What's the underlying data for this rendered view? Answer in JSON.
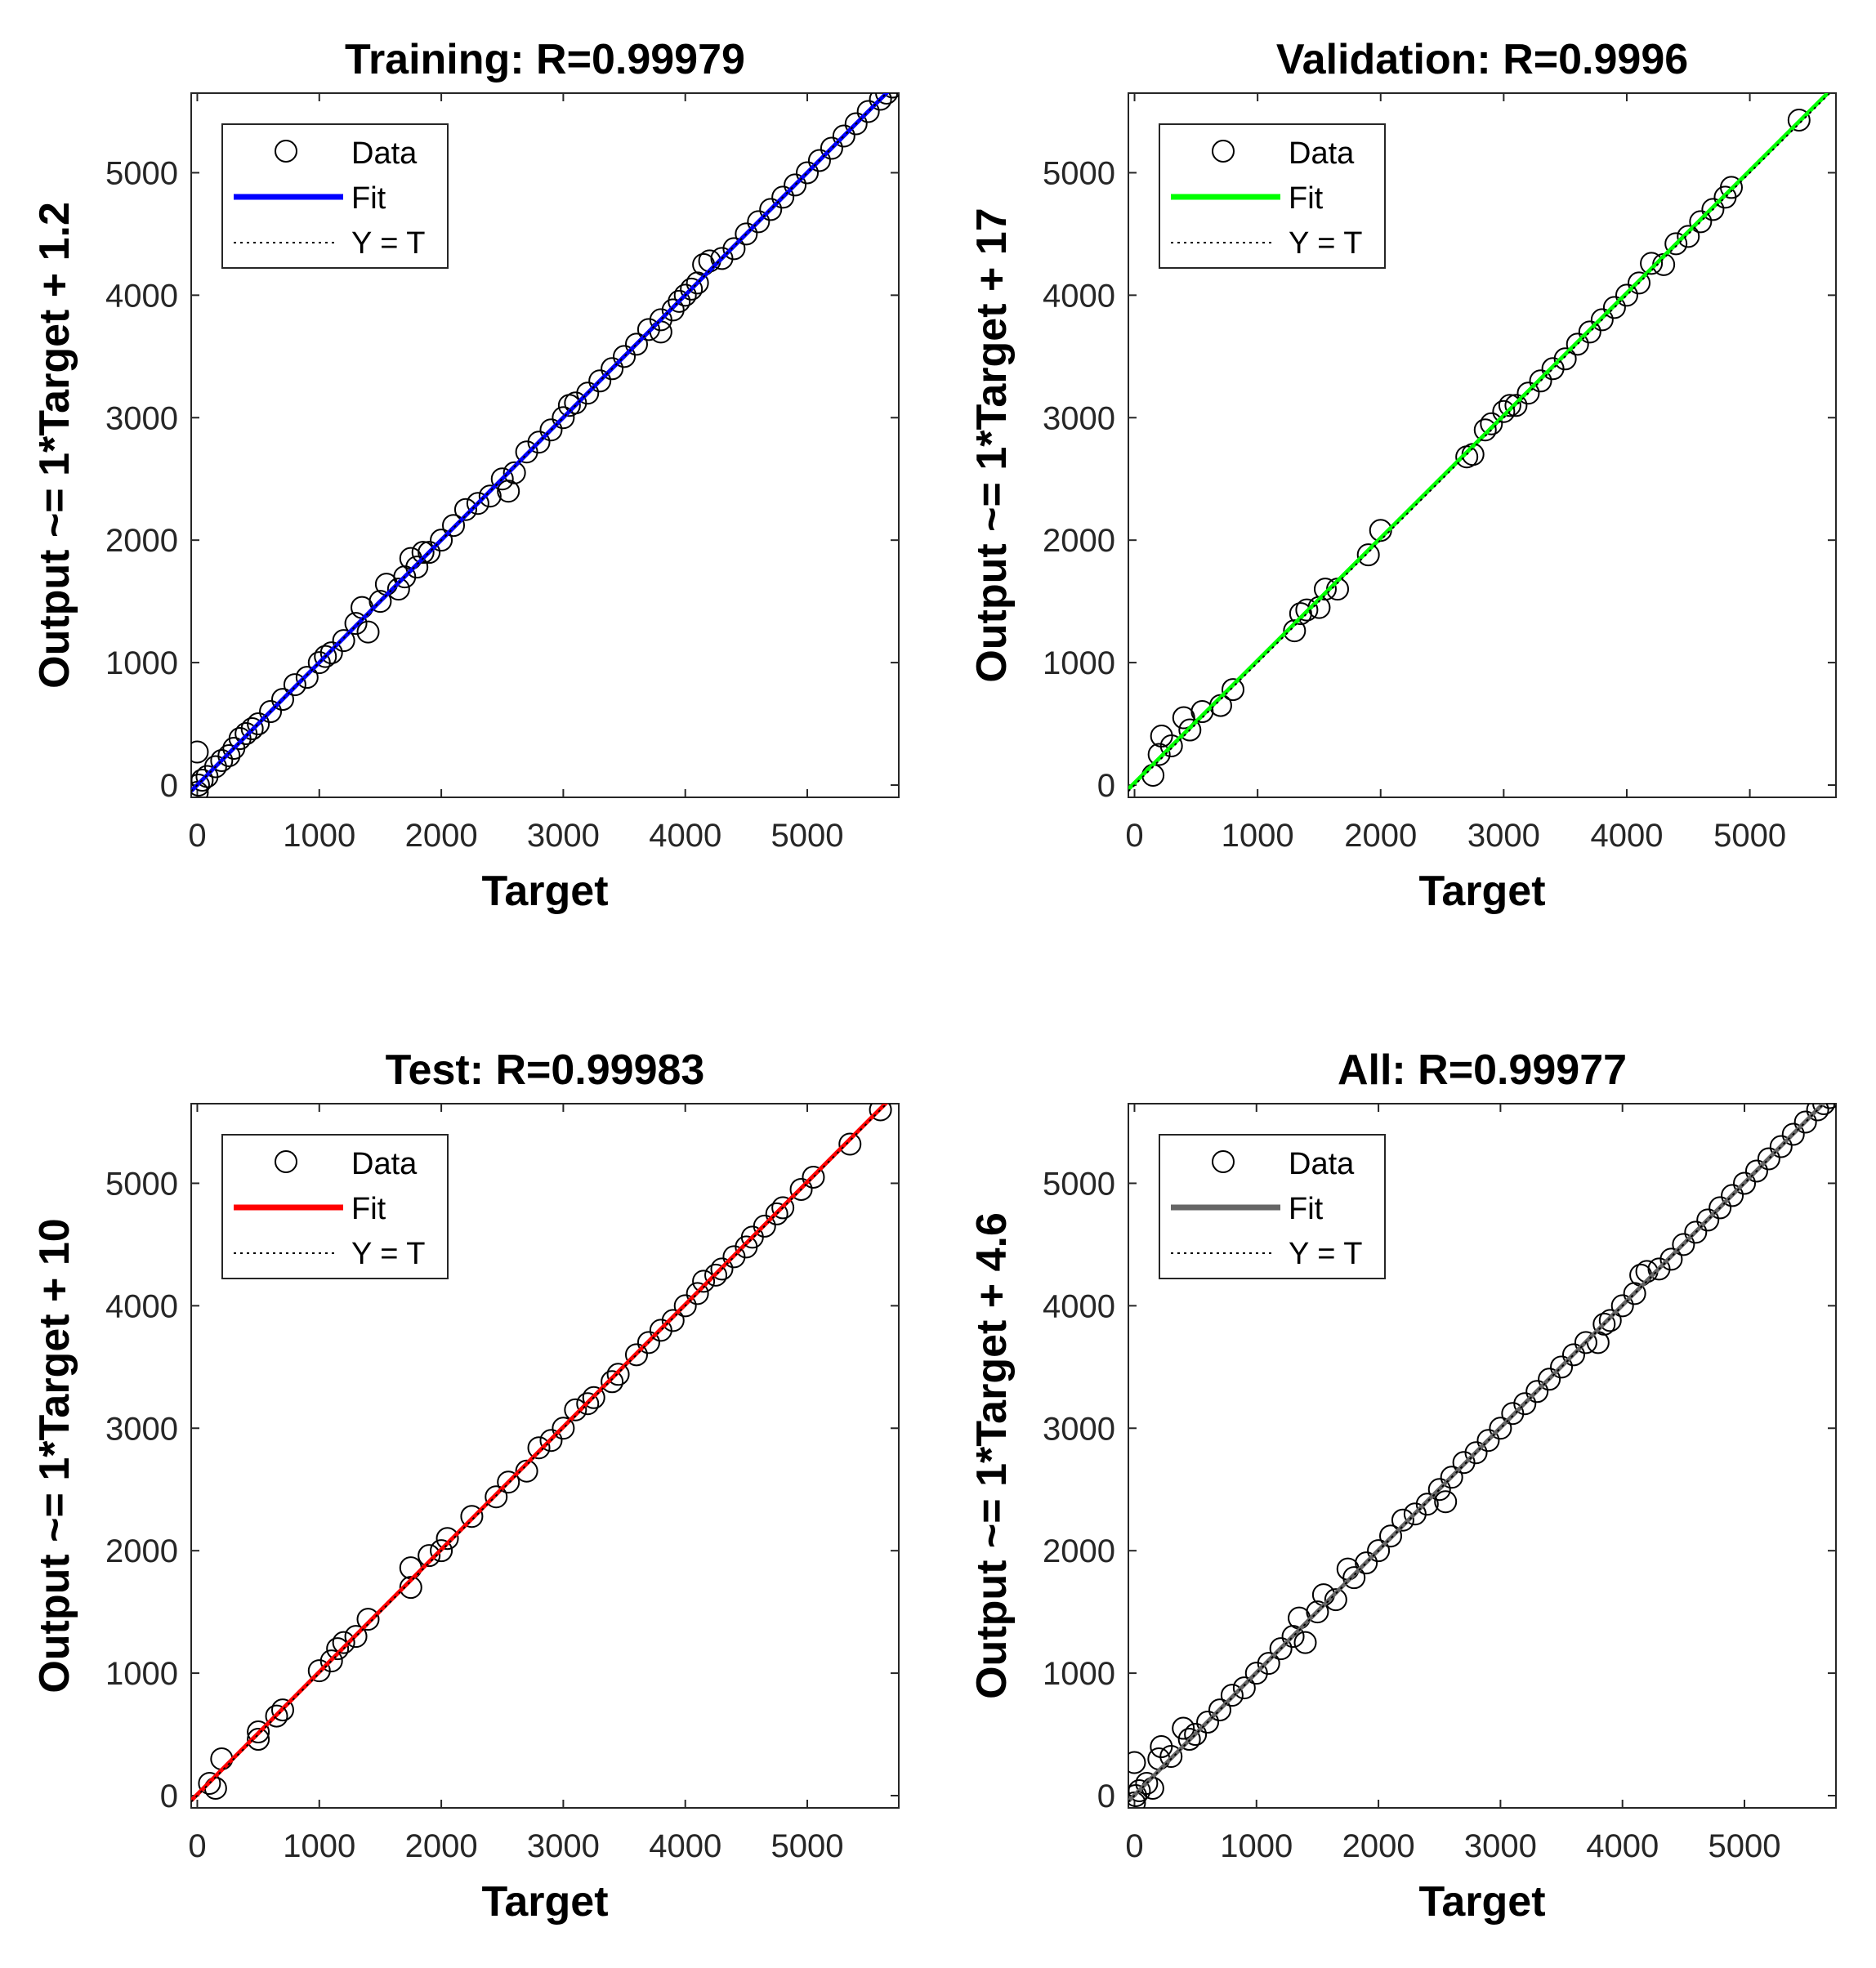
{
  "chart_data": [
    {
      "type": "scatter",
      "title": "Training: R=0.99979",
      "xlabel": "Target",
      "ylabel": "Output ~= 1*Target + 1.2",
      "xlim": [
        -50,
        5750
      ],
      "ylim": [
        -100,
        5650
      ],
      "xticks": [
        "0",
        "1000",
        "2000",
        "3000",
        "4000",
        "5000"
      ],
      "yticks": [
        "0",
        "1000",
        "2000",
        "3000",
        "4000",
        "5000"
      ],
      "legend": {
        "position": "top-left",
        "entries": [
          "Data",
          "Fit",
          "Y = T"
        ]
      },
      "fit": {
        "slope": 1,
        "intercept": 1.2,
        "color": "#0000ff"
      },
      "points": [
        [
          0,
          270
        ],
        [
          0,
          -60
        ],
        [
          10,
          0
        ],
        [
          40,
          40
        ],
        [
          80,
          70
        ],
        [
          150,
          150
        ],
        [
          200,
          200
        ],
        [
          260,
          240
        ],
        [
          300,
          300
        ],
        [
          350,
          380
        ],
        [
          400,
          420
        ],
        [
          450,
          460
        ],
        [
          500,
          500
        ],
        [
          600,
          600
        ],
        [
          700,
          700
        ],
        [
          800,
          820
        ],
        [
          900,
          880
        ],
        [
          1000,
          1000
        ],
        [
          1050,
          1050
        ],
        [
          1100,
          1080
        ],
        [
          1200,
          1180
        ],
        [
          1300,
          1320
        ],
        [
          1350,
          1450
        ],
        [
          1400,
          1250
        ],
        [
          1500,
          1500
        ],
        [
          1550,
          1640
        ],
        [
          1650,
          1600
        ],
        [
          1700,
          1700
        ],
        [
          1750,
          1850
        ],
        [
          1800,
          1780
        ],
        [
          1850,
          1900
        ],
        [
          1900,
          1900
        ],
        [
          2000,
          2000
        ],
        [
          2100,
          2120
        ],
        [
          2200,
          2250
        ],
        [
          2300,
          2300
        ],
        [
          2400,
          2360
        ],
        [
          2500,
          2500
        ],
        [
          2550,
          2400
        ],
        [
          2600,
          2550
        ],
        [
          2700,
          2720
        ],
        [
          2800,
          2800
        ],
        [
          2900,
          2900
        ],
        [
          3000,
          3000
        ],
        [
          3050,
          3100
        ],
        [
          3100,
          3120
        ],
        [
          3200,
          3200
        ],
        [
          3300,
          3300
        ],
        [
          3400,
          3400
        ],
        [
          3500,
          3500
        ],
        [
          3600,
          3600
        ],
        [
          3700,
          3720
        ],
        [
          3800,
          3700
        ],
        [
          3800,
          3800
        ],
        [
          3900,
          3880
        ],
        [
          3950,
          3950
        ],
        [
          4000,
          4000
        ],
        [
          4050,
          4050
        ],
        [
          4100,
          4100
        ],
        [
          4150,
          4250
        ],
        [
          4200,
          4280
        ],
        [
          4300,
          4300
        ],
        [
          4400,
          4380
        ],
        [
          4500,
          4500
        ],
        [
          4600,
          4600
        ],
        [
          4700,
          4700
        ],
        [
          4800,
          4800
        ],
        [
          4900,
          4900
        ],
        [
          5000,
          5000
        ],
        [
          5100,
          5100
        ],
        [
          5200,
          5200
        ],
        [
          5300,
          5300
        ],
        [
          5400,
          5400
        ],
        [
          5500,
          5500
        ],
        [
          5600,
          5600
        ],
        [
          5650,
          5650
        ],
        [
          5700,
          5700
        ]
      ]
    },
    {
      "type": "scatter",
      "title": "Validation: R=0.9996",
      "xlabel": "Target",
      "ylabel": "Output ~= 1*Target + 17",
      "xlim": [
        -50,
        5700
      ],
      "ylim": [
        -100,
        5650
      ],
      "xticks": [
        "0",
        "1000",
        "2000",
        "3000",
        "4000",
        "5000"
      ],
      "yticks": [
        "0",
        "1000",
        "2000",
        "3000",
        "4000",
        "5000"
      ],
      "legend": {
        "position": "top-left",
        "entries": [
          "Data",
          "Fit",
          "Y = T"
        ]
      },
      "fit": {
        "slope": 1,
        "intercept": 17,
        "color": "#00ff00"
      },
      "points": [
        [
          150,
          80
        ],
        [
          200,
          250
        ],
        [
          220,
          400
        ],
        [
          300,
          320
        ],
        [
          400,
          550
        ],
        [
          450,
          450
        ],
        [
          550,
          600
        ],
        [
          700,
          650
        ],
        [
          800,
          780
        ],
        [
          1300,
          1260
        ],
        [
          1350,
          1400
        ],
        [
          1400,
          1430
        ],
        [
          1500,
          1450
        ],
        [
          1550,
          1600
        ],
        [
          1650,
          1600
        ],
        [
          1900,
          1880
        ],
        [
          2000,
          2080
        ],
        [
          2700,
          2680
        ],
        [
          2750,
          2700
        ],
        [
          2850,
          2900
        ],
        [
          2900,
          2950
        ],
        [
          3000,
          3050
        ],
        [
          3050,
          3100
        ],
        [
          3100,
          3100
        ],
        [
          3200,
          3200
        ],
        [
          3300,
          3300
        ],
        [
          3400,
          3400
        ],
        [
          3500,
          3480
        ],
        [
          3600,
          3600
        ],
        [
          3700,
          3700
        ],
        [
          3800,
          3800
        ],
        [
          3900,
          3900
        ],
        [
          4000,
          4000
        ],
        [
          4100,
          4100
        ],
        [
          4200,
          4260
        ],
        [
          4300,
          4250
        ],
        [
          4400,
          4420
        ],
        [
          4500,
          4480
        ],
        [
          4600,
          4600
        ],
        [
          4700,
          4700
        ],
        [
          4800,
          4800
        ],
        [
          4850,
          4880
        ],
        [
          5400,
          5430
        ]
      ]
    },
    {
      "type": "scatter",
      "title": "Test: R=0.99983",
      "xlabel": "Target",
      "ylabel": "Output ~= 1*Target + 10",
      "xlim": [
        -50,
        5750
      ],
      "ylim": [
        -100,
        5650
      ],
      "xticks": [
        "0",
        "1000",
        "2000",
        "3000",
        "4000",
        "5000"
      ],
      "yticks": [
        "0",
        "1000",
        "2000",
        "3000",
        "4000",
        "5000"
      ],
      "legend": {
        "position": "top-left",
        "entries": [
          "Data",
          "Fit",
          "Y = T"
        ]
      },
      "fit": {
        "slope": 1,
        "intercept": 10,
        "color": "#ff0000"
      },
      "points": [
        [
          100,
          100
        ],
        [
          150,
          60
        ],
        [
          200,
          300
        ],
        [
          500,
          520
        ],
        [
          500,
          460
        ],
        [
          650,
          650
        ],
        [
          700,
          700
        ],
        [
          1000,
          1020
        ],
        [
          1100,
          1100
        ],
        [
          1150,
          1200
        ],
        [
          1200,
          1250
        ],
        [
          1300,
          1300
        ],
        [
          1400,
          1440
        ],
        [
          1750,
          1700
        ],
        [
          1750,
          1860
        ],
        [
          1900,
          1960
        ],
        [
          2000,
          2000
        ],
        [
          2050,
          2100
        ],
        [
          2250,
          2280
        ],
        [
          2450,
          2440
        ],
        [
          2550,
          2560
        ],
        [
          2700,
          2650
        ],
        [
          2800,
          2840
        ],
        [
          2900,
          2900
        ],
        [
          3000,
          3000
        ],
        [
          3100,
          3150
        ],
        [
          3200,
          3200
        ],
        [
          3250,
          3250
        ],
        [
          3400,
          3380
        ],
        [
          3450,
          3440
        ],
        [
          3600,
          3600
        ],
        [
          3700,
          3700
        ],
        [
          3800,
          3800
        ],
        [
          3900,
          3880
        ],
        [
          4000,
          4000
        ],
        [
          4100,
          4100
        ],
        [
          4150,
          4200
        ],
        [
          4250,
          4250
        ],
        [
          4300,
          4300
        ],
        [
          4400,
          4400
        ],
        [
          4500,
          4480
        ],
        [
          4550,
          4560
        ],
        [
          4650,
          4650
        ],
        [
          4750,
          4750
        ],
        [
          4800,
          4800
        ],
        [
          4950,
          4950
        ],
        [
          5050,
          5050
        ],
        [
          5350,
          5320
        ],
        [
          5600,
          5600
        ]
      ]
    },
    {
      "type": "scatter",
      "title": "All: R=0.99977",
      "xlabel": "Target",
      "ylabel": "Output ~= 1*Target + 4.6",
      "xlim": [
        -50,
        5750
      ],
      "ylim": [
        -100,
        5650
      ],
      "xticks": [
        "0",
        "1000",
        "2000",
        "3000",
        "4000",
        "5000"
      ],
      "yticks": [
        "0",
        "1000",
        "2000",
        "3000",
        "4000",
        "5000"
      ],
      "legend": {
        "position": "top-left",
        "entries": [
          "Data",
          "Fit",
          "Y = T"
        ]
      },
      "fit": {
        "slope": 1,
        "intercept": 4.6,
        "color": "#666666"
      },
      "points": [
        [
          0,
          270
        ],
        [
          0,
          -60
        ],
        [
          10,
          0
        ],
        [
          40,
          40
        ],
        [
          100,
          100
        ],
        [
          150,
          60
        ],
        [
          200,
          300
        ],
        [
          220,
          400
        ],
        [
          300,
          320
        ],
        [
          400,
          550
        ],
        [
          450,
          460
        ],
        [
          500,
          500
        ],
        [
          600,
          600
        ],
        [
          700,
          700
        ],
        [
          800,
          820
        ],
        [
          900,
          880
        ],
        [
          1000,
          1000
        ],
        [
          1100,
          1080
        ],
        [
          1200,
          1200
        ],
        [
          1300,
          1300
        ],
        [
          1350,
          1450
        ],
        [
          1400,
          1250
        ],
        [
          1500,
          1500
        ],
        [
          1550,
          1640
        ],
        [
          1650,
          1600
        ],
        [
          1750,
          1850
        ],
        [
          1800,
          1780
        ],
        [
          1900,
          1900
        ],
        [
          2000,
          2000
        ],
        [
          2100,
          2120
        ],
        [
          2200,
          2250
        ],
        [
          2300,
          2300
        ],
        [
          2400,
          2380
        ],
        [
          2500,
          2500
        ],
        [
          2550,
          2400
        ],
        [
          2600,
          2600
        ],
        [
          2700,
          2720
        ],
        [
          2800,
          2800
        ],
        [
          2900,
          2900
        ],
        [
          3000,
          3000
        ],
        [
          3100,
          3120
        ],
        [
          3200,
          3200
        ],
        [
          3300,
          3300
        ],
        [
          3400,
          3400
        ],
        [
          3500,
          3500
        ],
        [
          3600,
          3600
        ],
        [
          3700,
          3700
        ],
        [
          3800,
          3700
        ],
        [
          3850,
          3850
        ],
        [
          3900,
          3880
        ],
        [
          4000,
          4000
        ],
        [
          4100,
          4100
        ],
        [
          4150,
          4250
        ],
        [
          4200,
          4280
        ],
        [
          4300,
          4300
        ],
        [
          4400,
          4380
        ],
        [
          4500,
          4500
        ],
        [
          4600,
          4600
        ],
        [
          4700,
          4700
        ],
        [
          4800,
          4800
        ],
        [
          4900,
          4900
        ],
        [
          5000,
          5000
        ],
        [
          5100,
          5100
        ],
        [
          5200,
          5200
        ],
        [
          5300,
          5300
        ],
        [
          5400,
          5400
        ],
        [
          5500,
          5500
        ],
        [
          5600,
          5600
        ],
        [
          5650,
          5650
        ],
        [
          5700,
          5700
        ]
      ]
    }
  ]
}
